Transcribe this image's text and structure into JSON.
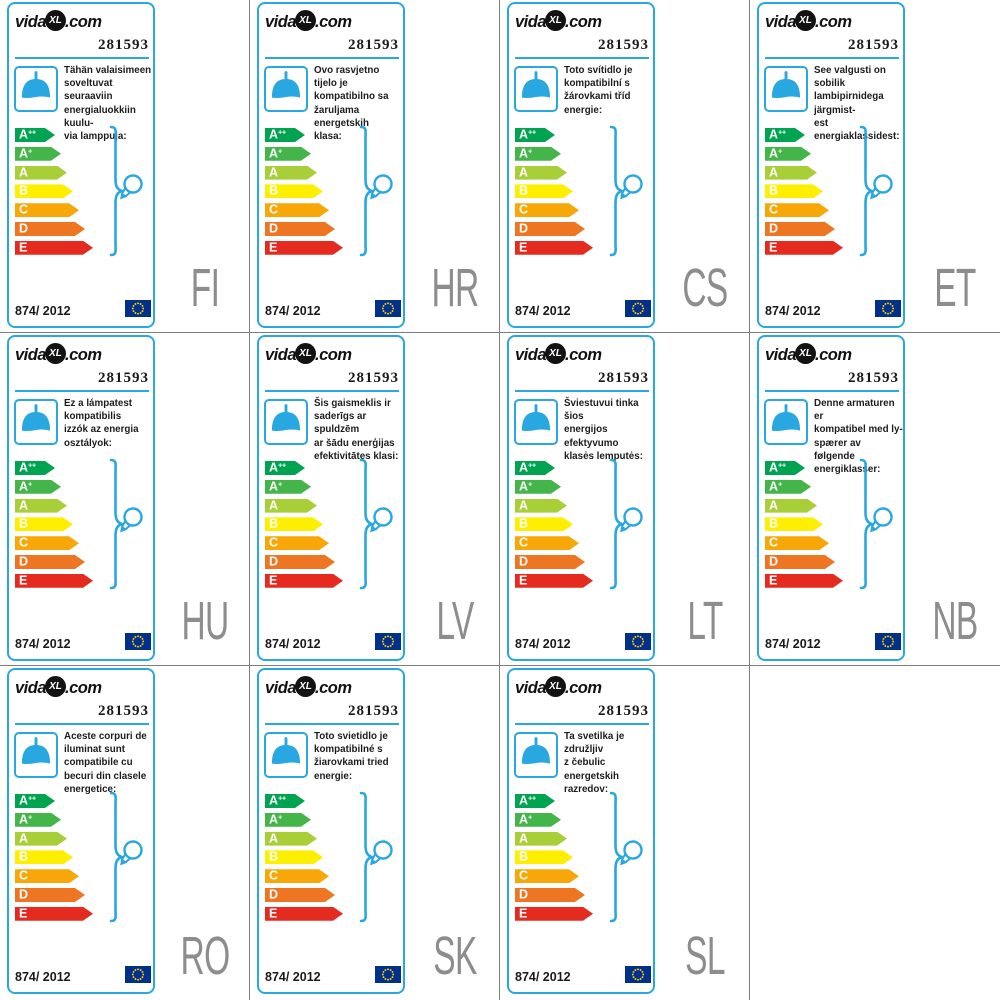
{
  "page": {
    "background": "#ffffff",
    "grid_line_color": "#7d7d7d"
  },
  "brand": {
    "prefix": "vida",
    "xl": "XL",
    "suffix": ".com"
  },
  "product_number": "281593",
  "regulation_number": "874/ 2012",
  "accent_blue": "#29a7e0",
  "lang_code_color": "#8d8d8d",
  "eu_flag": {
    "background": "#00308a",
    "star_color": "#ffcc00"
  },
  "energy_scale": [
    {
      "letter": "A",
      "sup": "++",
      "color": "#00a350",
      "width": 40
    },
    {
      "letter": "A",
      "sup": "+",
      "color": "#44b649",
      "width": 46
    },
    {
      "letter": "A",
      "sup": "",
      "color": "#a9cf38",
      "width": 52
    },
    {
      "letter": "B",
      "sup": "",
      "color": "#feef00",
      "width": 58
    },
    {
      "letter": "C",
      "sup": "",
      "color": "#f7a707",
      "width": 64
    },
    {
      "letter": "D",
      "sup": "",
      "color": "#ee7623",
      "width": 70
    },
    {
      "letter": "E",
      "sup": "",
      "color": "#e52a20",
      "width": 78
    }
  ],
  "cards": [
    {
      "lang_code": "FI",
      "description": "Tähän valaisimeen\nsoveltuvat seuraaviin\nenergialuokkiin kuulu-\nvia lamppuja:"
    },
    {
      "lang_code": "HR",
      "description": "Ovo rasvjetno tijelo je\nkompatibilno sa\nžaruljama energetskih\nklasa:"
    },
    {
      "lang_code": "CS",
      "description": "Toto svítidlo je\nkompatibilní s\nžárovkami tříd\nenergie:"
    },
    {
      "lang_code": "ET",
      "description": "See valgusti on sobilik\nlambipirnidega järgmist-\nest energiaklassidest:"
    },
    {
      "lang_code": "HU",
      "description": "Ez a lámpatest\nkompatibilis\nizzók az energia\nosztályok:"
    },
    {
      "lang_code": "LV",
      "description": "Šis gaismeklis ir\nsaderīgs ar spuldzēm\nar šādu enerģijas\nefektivitātes klasi:"
    },
    {
      "lang_code": "LT",
      "description": "Šviestuvui tinka šios\nenergijos efektyvumo\nklasės lemputės:"
    },
    {
      "lang_code": "NB",
      "description": "Denne armaturen er\nkompatibel med ly-\nspærer av følgende\nenergiklasser:"
    },
    {
      "lang_code": "RO",
      "description": "Aceste corpuri de\niluminat sunt\ncompatibile cu\nbecuri din clasele\nenergetice:"
    },
    {
      "lang_code": "SK",
      "description": "Toto svietidlo je\nkompatibilné s\nžiarovkami tried\nenergie:"
    },
    {
      "lang_code": "SL",
      "description": "Ta svetilka je združljiv\nz čebulic energetskih\nrazredov:"
    }
  ]
}
